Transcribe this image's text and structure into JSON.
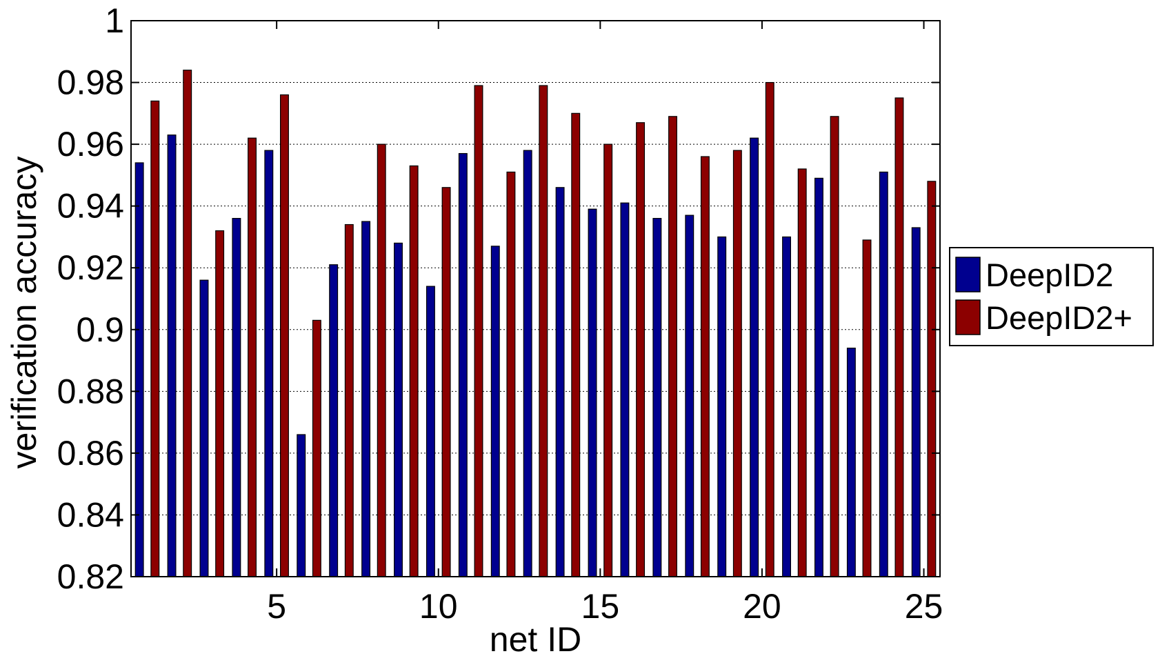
{
  "chart_data": {
    "type": "bar",
    "title": "",
    "xlabel": "net ID",
    "ylabel": "verification accuracy",
    "ylim": [
      0.82,
      1.0
    ],
    "xlim": [
      0.5,
      25.5
    ],
    "yticks": [
      "0.82",
      "0.84",
      "0.86",
      "0.88",
      "0.9",
      "0.92",
      "0.94",
      "0.96",
      "0.98",
      "1"
    ],
    "xticks": [
      "5",
      "10",
      "15",
      "20",
      "25"
    ],
    "grid": "horizontal dotted",
    "legend_position": "right",
    "categories": [
      1,
      2,
      3,
      4,
      5,
      6,
      7,
      8,
      9,
      10,
      11,
      12,
      13,
      14,
      15,
      16,
      17,
      18,
      19,
      20,
      21,
      22,
      23,
      24,
      25
    ],
    "series": [
      {
        "name": "DeepID2",
        "color": "#00008f",
        "values": [
          0.954,
          0.963,
          0.916,
          0.936,
          0.958,
          0.866,
          0.921,
          0.935,
          0.928,
          0.914,
          0.957,
          0.927,
          0.958,
          0.946,
          0.939,
          0.941,
          0.936,
          0.937,
          0.93,
          0.962,
          0.93,
          0.949,
          0.894,
          0.951,
          0.933
        ]
      },
      {
        "name": "DeepID2+",
        "color": "#8c0000",
        "values": [
          0.974,
          0.984,
          0.932,
          0.962,
          0.976,
          0.903,
          0.934,
          0.96,
          0.953,
          0.946,
          0.979,
          0.951,
          0.979,
          0.97,
          0.96,
          0.967,
          0.969,
          0.956,
          0.958,
          0.98,
          0.952,
          0.969,
          0.929,
          0.975,
          0.948
        ]
      }
    ]
  }
}
